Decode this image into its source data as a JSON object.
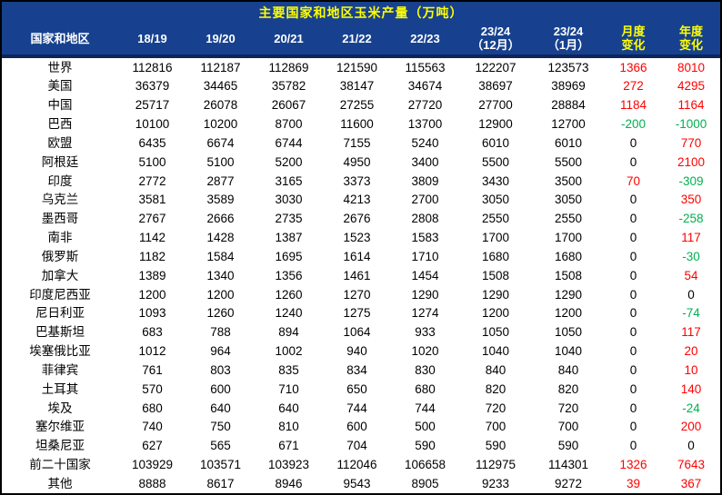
{
  "colors": {
    "header_bg": "#17418F",
    "header_divider": "#0D2558",
    "title": "#FFFF00",
    "header_text": "#FFFFFF",
    "accent": "#FFFF00",
    "positive": "#FF0000",
    "negative": "#00B050",
    "body_text": "#000000",
    "border": "#000000"
  },
  "chart_data": {
    "type": "table",
    "title": "主要国家和地区玉米产量（万吨）",
    "legend_position": "none",
    "grid": false,
    "columns": [
      {
        "label": "国家和地区",
        "accent": false
      },
      {
        "label": "18/19",
        "accent": false
      },
      {
        "label": "19/20",
        "accent": false
      },
      {
        "label": "20/21",
        "accent": false
      },
      {
        "label": "21/22",
        "accent": false
      },
      {
        "label": "22/23",
        "accent": false
      },
      {
        "label": "23/24\n（12月）",
        "accent": false
      },
      {
        "label": "23/24\n（1月）",
        "accent": false
      },
      {
        "label": "月度\n变化",
        "accent": true
      },
      {
        "label": "年度\n变化",
        "accent": true
      }
    ],
    "rows": [
      {
        "name": "世界",
        "values": [
          112816,
          112187,
          112869,
          121590,
          115563,
          122207,
          123573
        ],
        "monthly_change": 1366,
        "yearly_change": 8010
      },
      {
        "name": "美国",
        "values": [
          36379,
          34465,
          35782,
          38147,
          34674,
          38697,
          38969
        ],
        "monthly_change": 272,
        "yearly_change": 4295
      },
      {
        "name": "中国",
        "values": [
          25717,
          26078,
          26067,
          27255,
          27720,
          27700,
          28884
        ],
        "monthly_change": 1184,
        "yearly_change": 1164
      },
      {
        "name": "巴西",
        "values": [
          10100,
          10200,
          8700,
          11600,
          13700,
          12900,
          12700
        ],
        "monthly_change": -200,
        "yearly_change": -1000
      },
      {
        "name": "欧盟",
        "values": [
          6435,
          6674,
          6744,
          7155,
          5240,
          6010,
          6010
        ],
        "monthly_change": 0,
        "yearly_change": 770
      },
      {
        "name": "阿根廷",
        "values": [
          5100,
          5100,
          5200,
          4950,
          3400,
          5500,
          5500
        ],
        "monthly_change": 0,
        "yearly_change": 2100
      },
      {
        "name": "印度",
        "values": [
          2772,
          2877,
          3165,
          3373,
          3809,
          3430,
          3500
        ],
        "monthly_change": 70,
        "yearly_change": -309
      },
      {
        "name": "乌克兰",
        "values": [
          3581,
          3589,
          3030,
          4213,
          2700,
          3050,
          3050
        ],
        "monthly_change": 0,
        "yearly_change": 350
      },
      {
        "name": "墨西哥",
        "values": [
          2767,
          2666,
          2735,
          2676,
          2808,
          2550,
          2550
        ],
        "monthly_change": 0,
        "yearly_change": -258
      },
      {
        "name": "南非",
        "values": [
          1142,
          1428,
          1387,
          1523,
          1583,
          1700,
          1700
        ],
        "monthly_change": 0,
        "yearly_change": 117
      },
      {
        "name": "俄罗斯",
        "values": [
          1182,
          1584,
          1695,
          1614,
          1710,
          1680,
          1680
        ],
        "monthly_change": 0,
        "yearly_change": -30
      },
      {
        "name": "加拿大",
        "values": [
          1389,
          1340,
          1356,
          1461,
          1454,
          1508,
          1508
        ],
        "monthly_change": 0,
        "yearly_change": 54
      },
      {
        "name": "印度尼西亚",
        "values": [
          1200,
          1200,
          1260,
          1270,
          1290,
          1290,
          1290
        ],
        "monthly_change": 0,
        "yearly_change": 0
      },
      {
        "name": "尼日利亚",
        "values": [
          1093,
          1260,
          1240,
          1275,
          1274,
          1200,
          1200
        ],
        "monthly_change": 0,
        "yearly_change": -74
      },
      {
        "name": "巴基斯坦",
        "values": [
          683,
          788,
          894,
          1064,
          933,
          1050,
          1050
        ],
        "monthly_change": 0,
        "yearly_change": 117
      },
      {
        "name": "埃塞俄比亚",
        "values": [
          1012,
          964,
          1002,
          940,
          1020,
          1040,
          1040
        ],
        "monthly_change": 0,
        "yearly_change": 20
      },
      {
        "name": "菲律宾",
        "values": [
          761,
          803,
          835,
          834,
          830,
          840,
          840
        ],
        "monthly_change": 0,
        "yearly_change": 10
      },
      {
        "name": "土耳其",
        "values": [
          570,
          600,
          710,
          650,
          680,
          820,
          820
        ],
        "monthly_change": 0,
        "yearly_change": 140
      },
      {
        "name": "埃及",
        "values": [
          680,
          640,
          640,
          744,
          744,
          720,
          720
        ],
        "monthly_change": 0,
        "yearly_change": -24
      },
      {
        "name": "塞尔维亚",
        "values": [
          740,
          750,
          810,
          600,
          500,
          700,
          700
        ],
        "monthly_change": 0,
        "yearly_change": 200
      },
      {
        "name": "坦桑尼亚",
        "values": [
          627,
          565,
          671,
          704,
          590,
          590,
          590
        ],
        "monthly_change": 0,
        "yearly_change": 0
      },
      {
        "name": "前二十国家",
        "values": [
          103929,
          103571,
          103923,
          112046,
          106658,
          112975,
          114301
        ],
        "monthly_change": 1326,
        "yearly_change": 7643
      },
      {
        "name": "其他",
        "values": [
          8888,
          8617,
          8946,
          9543,
          8905,
          9233,
          9272
        ],
        "monthly_change": 39,
        "yearly_change": 367
      }
    ]
  }
}
